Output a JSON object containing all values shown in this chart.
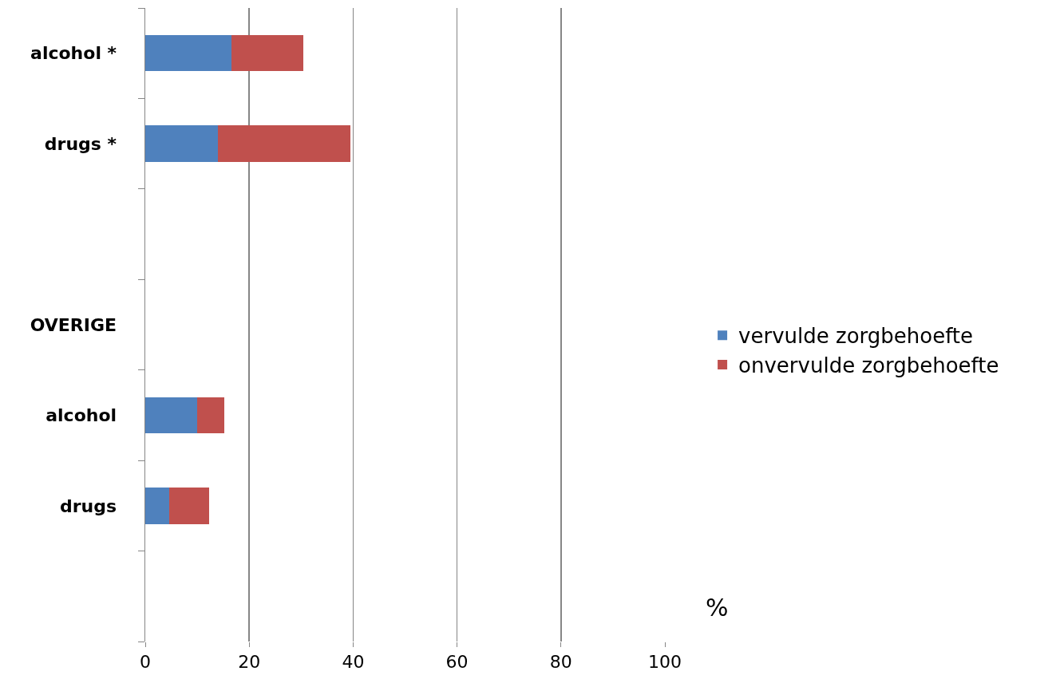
{
  "chart_data": {
    "type": "bar",
    "orientation": "horizontal",
    "stacked": true,
    "categories": [
      "alcohol *",
      "drugs *",
      null,
      "OVERIGE",
      "alcohol",
      "drugs",
      null
    ],
    "series": [
      {
        "name": "vervulde zorgbehoefte",
        "color": "#4f81bd",
        "values": [
          16.6,
          14.0,
          null,
          null,
          10.0,
          4.6,
          null
        ]
      },
      {
        "name": "onvervulde zorgbehoefte",
        "color": "#c0504d",
        "values": [
          13.8,
          25.5,
          null,
          null,
          5.2,
          7.7,
          null
        ]
      }
    ],
    "xlabel": "%",
    "xlim": [
      0,
      100
    ],
    "xticks": [
      0,
      20,
      40,
      60,
      80,
      100
    ],
    "grid": "x",
    "legend": "right"
  }
}
